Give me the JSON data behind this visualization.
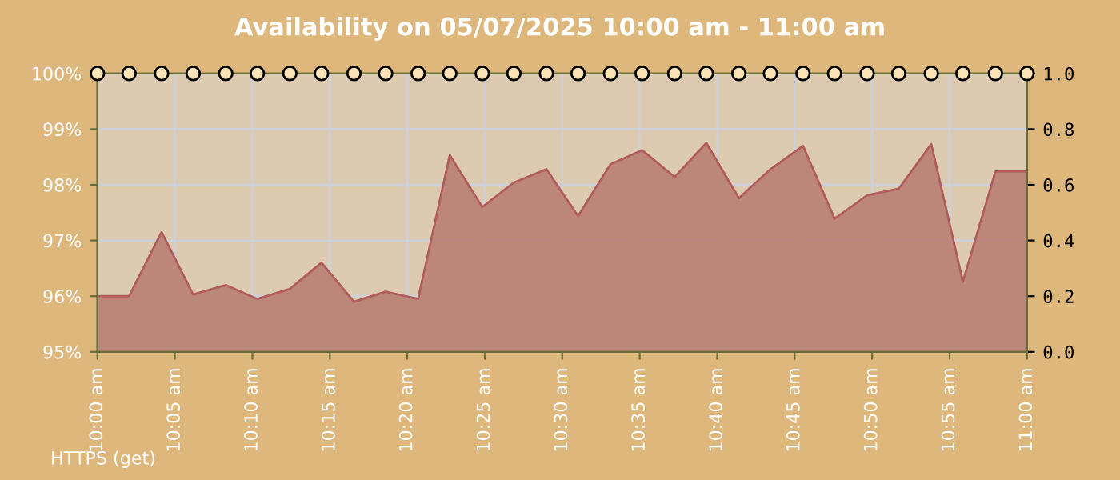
{
  "chart_data": {
    "type": "area",
    "title": "Availability on 05/07/2025 10:00 am - 11:00 am",
    "x": [
      10.0,
      10.034,
      10.069,
      10.103,
      10.138,
      10.172,
      10.207,
      10.241,
      10.276,
      10.31,
      10.345,
      10.379,
      10.414,
      10.448,
      10.483,
      10.517,
      10.552,
      10.586,
      10.621,
      10.655,
      10.69,
      10.724,
      10.759,
      10.793,
      10.828,
      10.862,
      10.897,
      10.931,
      10.966,
      11.0
    ],
    "series": [
      {
        "color": "#b98276",
        "values": [
          96.0,
          96.0,
          97.15,
          96.03,
          96.2,
          95.95,
          96.13,
          96.6,
          95.9,
          96.08,
          95.95,
          98.53,
          97.6,
          98.04,
          98.28,
          97.44,
          98.37,
          98.62,
          98.14,
          98.75,
          97.76,
          98.28,
          98.7,
          97.39,
          97.81,
          97.93,
          98.73,
          96.26,
          98.24,
          98.24
        ]
      },
      {
        "type": "scatter",
        "axis": "y2",
        "color": "#000000",
        "marker": "circle",
        "values": [
          1.0,
          1.0,
          1.0,
          1.0,
          1.0,
          1.0,
          1.0,
          1.0,
          1.0,
          1.0,
          1.0,
          1.0,
          1.0,
          1.0,
          1.0,
          1.0,
          1.0,
          1.0,
          1.0,
          1.0,
          1.0,
          1.0,
          1.0,
          1.0,
          1.0,
          1.0,
          1.0,
          1.0,
          1.0,
          1.0
        ]
      }
    ],
    "xlim": [
      10.0,
      11.0
    ],
    "xticks": [
      {
        "value": 10.0,
        "label": "10:00 am"
      },
      {
        "value": 10.0833,
        "label": "10:05 am"
      },
      {
        "value": 10.1667,
        "label": "10:10 am"
      },
      {
        "value": 10.25,
        "label": "10:15 am"
      },
      {
        "value": 10.3333,
        "label": "10:20 am"
      },
      {
        "value": 10.4167,
        "label": "10:25 am"
      },
      {
        "value": 10.5,
        "label": "10:30 am"
      },
      {
        "value": 10.5833,
        "label": "10:35 am"
      },
      {
        "value": 10.6667,
        "label": "10:40 am"
      },
      {
        "value": 10.75,
        "label": "10:45 am"
      },
      {
        "value": 10.8333,
        "label": "10:50 am"
      },
      {
        "value": 10.9167,
        "label": "10:55 am"
      },
      {
        "value": 11.0,
        "label": "11:00 am"
      }
    ],
    "ylim": [
      95,
      100
    ],
    "yticks": [
      {
        "value": 95,
        "label": "95%"
      },
      {
        "value": 96,
        "label": "96%"
      },
      {
        "value": 97,
        "label": "97%"
      },
      {
        "value": 98,
        "label": "98%"
      },
      {
        "value": 99,
        "label": "99%"
      },
      {
        "value": 100,
        "label": "100%"
      }
    ],
    "y2lim": [
      0,
      1
    ],
    "y2ticks": [
      {
        "value": 0,
        "label": "0.0"
      },
      {
        "value": 0.2,
        "label": "0.2"
      },
      {
        "value": 0.4,
        "label": "0.4"
      },
      {
        "value": 0.6,
        "label": "0.6"
      },
      {
        "value": 0.8,
        "label": "0.8"
      },
      {
        "value": 1.0,
        "label": "1.0"
      }
    ],
    "grid": true,
    "annotations": [
      "HTTPS (get)"
    ]
  }
}
